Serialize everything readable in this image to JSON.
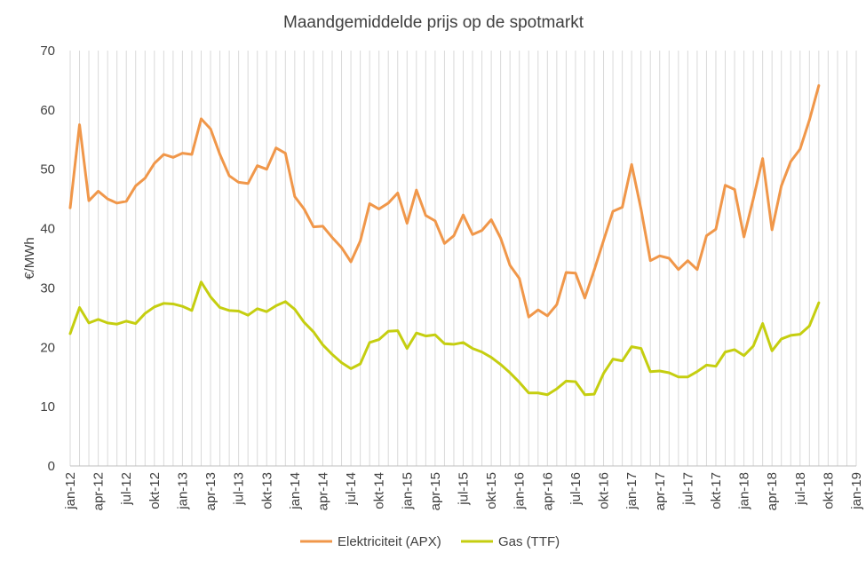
{
  "chart_data": {
    "type": "line",
    "title": "Maandgemiddelde prijs op de spotmarkt",
    "xlabel": "",
    "ylabel": "€/MWh",
    "ylim": [
      0,
      70
    ],
    "yticks": [
      0,
      10,
      20,
      30,
      40,
      50,
      60,
      70
    ],
    "x_start": "2012-01",
    "x_months_total": 84,
    "x_tick_step_months": 3,
    "x_tick_labels": [
      "jan-12",
      "apr-12",
      "jul-12",
      "okt-12",
      "jan-13",
      "apr-13",
      "jul-13",
      "okt-13",
      "jan-14",
      "apr-14",
      "jul-14",
      "okt-14",
      "jan-15",
      "apr-15",
      "jul-15",
      "okt-15",
      "jan-16",
      "apr-16",
      "jul-16",
      "okt-16",
      "jan-17",
      "apr-17",
      "jul-17",
      "okt-17",
      "jan-18",
      "apr-18",
      "jul-18",
      "okt-18",
      "jan-19"
    ],
    "grid": "vertical",
    "legend_position": "bottom",
    "colors": {
      "elektriciteit": "#F0974A",
      "gas": "#C5CE10",
      "grid": "#d9d9d9",
      "text": "#404040"
    },
    "series": [
      {
        "name": "Elektriciteit (APX)",
        "key": "elektriciteit",
        "values": [
          43.5,
          57.5,
          44.7,
          46.3,
          45.0,
          44.3,
          44.6,
          47.2,
          48.5,
          51.0,
          52.5,
          52.0,
          52.7,
          52.5,
          58.5,
          56.8,
          52.5,
          48.9,
          47.8,
          47.6,
          50.6,
          50.0,
          53.6,
          52.7,
          45.4,
          43.3,
          40.3,
          40.4,
          38.5,
          36.8,
          34.4,
          37.9,
          44.2,
          43.3,
          44.3,
          46.0,
          40.9,
          46.5,
          42.2,
          41.3,
          37.5,
          38.8,
          42.3,
          39.0,
          39.7,
          41.5,
          38.4,
          33.8,
          31.6,
          25.1,
          26.3,
          25.3,
          27.2,
          32.6,
          32.5,
          28.3,
          33.0,
          38.0,
          42.9,
          43.6,
          50.8,
          43.3,
          34.6,
          35.4,
          35.0,
          33.1,
          34.6,
          33.1,
          38.8,
          39.9,
          47.3,
          46.6,
          38.6,
          45.0,
          51.8,
          39.8,
          47.2,
          51.3,
          53.4,
          58.3,
          64.1
        ]
      },
      {
        "name": "Gas (TTF)",
        "key": "gas",
        "values": [
          22.3,
          26.7,
          24.1,
          24.7,
          24.1,
          23.9,
          24.4,
          24.0,
          25.7,
          26.8,
          27.4,
          27.3,
          26.9,
          26.2,
          31.0,
          28.5,
          26.7,
          26.2,
          26.1,
          25.4,
          26.5,
          26.0,
          27.0,
          27.7,
          26.4,
          24.2,
          22.6,
          20.4,
          18.8,
          17.4,
          16.4,
          17.2,
          20.8,
          21.3,
          22.7,
          22.8,
          19.8,
          22.4,
          21.9,
          22.1,
          20.6,
          20.5,
          20.8,
          19.8,
          19.2,
          18.3,
          17.1,
          15.7,
          14.1,
          12.3,
          12.3,
          12.0,
          13.0,
          14.3,
          14.2,
          12.0,
          12.1,
          15.6,
          18.0,
          17.7,
          20.1,
          19.8,
          15.9,
          16.0,
          15.7,
          15.0,
          15.0,
          15.9,
          17.0,
          16.8,
          19.2,
          19.6,
          18.6,
          20.2,
          24.0,
          19.4,
          21.4,
          22.0,
          22.2,
          23.6,
          27.5
        ]
      }
    ]
  }
}
